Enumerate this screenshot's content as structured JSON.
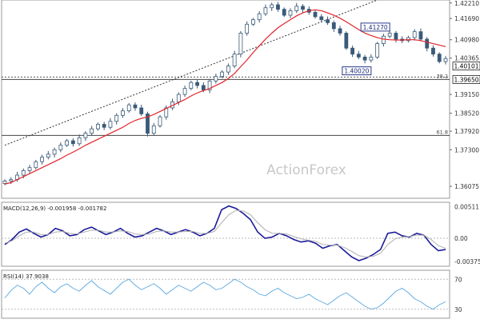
{
  "watermark": "ActionForex",
  "colors": {
    "candle": "#3a5a78",
    "ma": "#e0242b",
    "macd": "#1a1a9a",
    "signal": "#b0b0b0",
    "rsi": "#5aa8e0",
    "grid": "#d6d6d6",
    "border": "#999999"
  },
  "chart_data": [
    {
      "type": "candlestick",
      "panel": "price",
      "ylim": [
        1.35675,
        1.4231
      ],
      "y_ticks": [
        "1.42210",
        "1.41690",
        "1.40980",
        "1.40365",
        "1.39150",
        "1.38520",
        "1.37920",
        "1.37300",
        "1.36075"
      ],
      "price_label": "1.40101",
      "fib_label": "1.39650",
      "hlines": [
        {
          "value": 1.3965,
          "label": "38.2"
        },
        {
          "value": 1.3778,
          "label": "61.8"
        }
      ],
      "annotations": [
        {
          "text": "1.41270",
          "price": 1.4127
        },
        {
          "text": "1.40020",
          "price": 1.4002
        }
      ],
      "trendline": {
        "from": [
          0,
          1.3745
        ],
        "to": [
          60,
          1.4231
        ]
      },
      "closes": [
        1.3625,
        1.363,
        1.3645,
        1.366,
        1.367,
        1.369,
        1.3705,
        1.3715,
        1.373,
        1.3745,
        1.376,
        1.375,
        1.377,
        1.3785,
        1.38,
        1.3815,
        1.3805,
        1.3825,
        1.3845,
        1.386,
        1.388,
        1.387,
        1.385,
        1.3785,
        1.381,
        1.384,
        1.387,
        1.389,
        1.3915,
        1.3935,
        1.3955,
        1.3945,
        1.393,
        1.396,
        1.3975,
        1.399,
        1.401,
        1.405,
        1.412,
        1.415,
        1.4165,
        1.4185,
        1.4205,
        1.4215,
        1.42,
        1.418,
        1.4195,
        1.421,
        1.42,
        1.419,
        1.4175,
        1.4165,
        1.4155,
        1.4135,
        1.412,
        1.407,
        1.405,
        1.404,
        1.403,
        1.404,
        1.4085,
        1.411,
        1.412,
        1.41,
        1.4095,
        1.4105,
        1.4125,
        1.41,
        1.407,
        1.405,
        1.4025,
        1.4035
      ],
      "ma": [
        1.3615,
        1.362,
        1.363,
        1.364,
        1.365,
        1.366,
        1.367,
        1.368,
        1.369,
        1.37,
        1.3712,
        1.3722,
        1.3733,
        1.3745,
        1.3755,
        1.3765,
        1.3775,
        1.3785,
        1.3795,
        1.3805,
        1.3818,
        1.3828,
        1.3835,
        1.384,
        1.3848,
        1.3858,
        1.3868,
        1.3878,
        1.3888,
        1.3898,
        1.391,
        1.392,
        1.3928,
        1.3935,
        1.3945,
        1.3955,
        1.3968,
        1.3985,
        1.4008,
        1.403,
        1.4055,
        1.4078,
        1.41,
        1.412,
        1.4138,
        1.4152,
        1.4165,
        1.4178,
        1.4188,
        1.4195,
        1.4198,
        1.4195,
        1.4188,
        1.418,
        1.417,
        1.4158,
        1.4145,
        1.4132,
        1.412,
        1.4112,
        1.4105,
        1.41,
        1.4098,
        1.4097,
        1.4097,
        1.4098,
        1.4098,
        1.4095,
        1.409,
        1.4085,
        1.408,
        1.4075
      ]
    },
    {
      "type": "line",
      "panel": "macd",
      "title": "MACD(12,26,9) -0.001958 -0.001782",
      "ylim": [
        -0.0045,
        0.0058
      ],
      "y_ticks": [
        {
          "label": "0.00511",
          "value": 0.00511
        },
        {
          "label": "0.00",
          "value": 0.0
        },
        {
          "label": "-0.003754",
          "value": -0.003754
        }
      ],
      "series": [
        {
          "role": "macd",
          "values": [
            -0.001,
            -0.0002,
            0.001,
            0.0015,
            0.0008,
            0.0002,
            0.0006,
            0.0016,
            0.0012,
            0.0004,
            0.0006,
            0.0014,
            0.0018,
            0.0012,
            0.0006,
            0.001,
            0.0016,
            0.0008,
            0.0002,
            0.0004,
            0.001,
            0.0016,
            0.0012,
            0.0006,
            0.001,
            0.0014,
            0.001,
            0.0004,
            0.0008,
            0.0016,
            0.0046,
            0.0052,
            0.0048,
            0.004,
            0.003,
            0.001,
            0.0,
            0.0002,
            0.0008,
            0.0004,
            -0.0002,
            -0.0006,
            -0.0004,
            -0.0008,
            -0.0016,
            -0.0012,
            -0.001,
            -0.002,
            -0.003,
            -0.0036,
            -0.0032,
            -0.0026,
            -0.0018,
            0.0008,
            0.001,
            0.0004,
            0.0002,
            0.0008,
            0.0005,
            -0.001,
            -0.002,
            -0.0018
          ]
        },
        {
          "role": "signal",
          "values": [
            -0.0008,
            -0.0004,
            0.0004,
            0.001,
            0.001,
            0.0006,
            0.0006,
            0.001,
            0.0011,
            0.0008,
            0.0007,
            0.001,
            0.0013,
            0.0013,
            0.001,
            0.001,
            0.0012,
            0.0011,
            0.0007,
            0.0006,
            0.0007,
            0.0011,
            0.0012,
            0.001,
            0.001,
            0.0011,
            0.0011,
            0.0008,
            0.0008,
            0.0011,
            0.0025,
            0.0038,
            0.0045,
            0.0044,
            0.0038,
            0.0025,
            0.0014,
            0.0008,
            0.0008,
            0.0007,
            0.0003,
            -0.0001,
            -0.0003,
            -0.0005,
            -0.001,
            -0.0011,
            -0.0011,
            -0.0015,
            -0.0021,
            -0.0028,
            -0.003,
            -0.0029,
            -0.0024,
            -0.001,
            -0.0001,
            0.0002,
            0.0003,
            0.0005,
            0.0005,
            -0.0002,
            -0.0012,
            -0.0016
          ]
        }
      ]
    },
    {
      "type": "line",
      "panel": "rsi",
      "title": "RSI(14) 37.9038",
      "ylim": [
        18,
        82
      ],
      "y_ticks": [
        {
          "label": "70",
          "value": 70
        },
        {
          "label": "30",
          "value": 30
        }
      ],
      "series": [
        {
          "role": "rsi",
          "values": [
            45,
            55,
            62,
            58,
            50,
            60,
            66,
            58,
            52,
            60,
            64,
            58,
            54,
            62,
            68,
            60,
            55,
            50,
            58,
            66,
            70,
            62,
            56,
            60,
            64,
            58,
            50,
            56,
            62,
            58,
            54,
            60,
            66,
            62,
            56,
            58,
            64,
            70,
            66,
            60,
            56,
            50,
            48,
            54,
            58,
            52,
            48,
            44,
            46,
            50,
            44,
            40,
            36,
            42,
            48,
            52,
            46,
            40,
            34,
            30,
            32,
            38,
            46,
            54,
            58,
            52,
            44,
            40,
            34,
            30,
            36,
            40
          ]
        }
      ]
    }
  ]
}
